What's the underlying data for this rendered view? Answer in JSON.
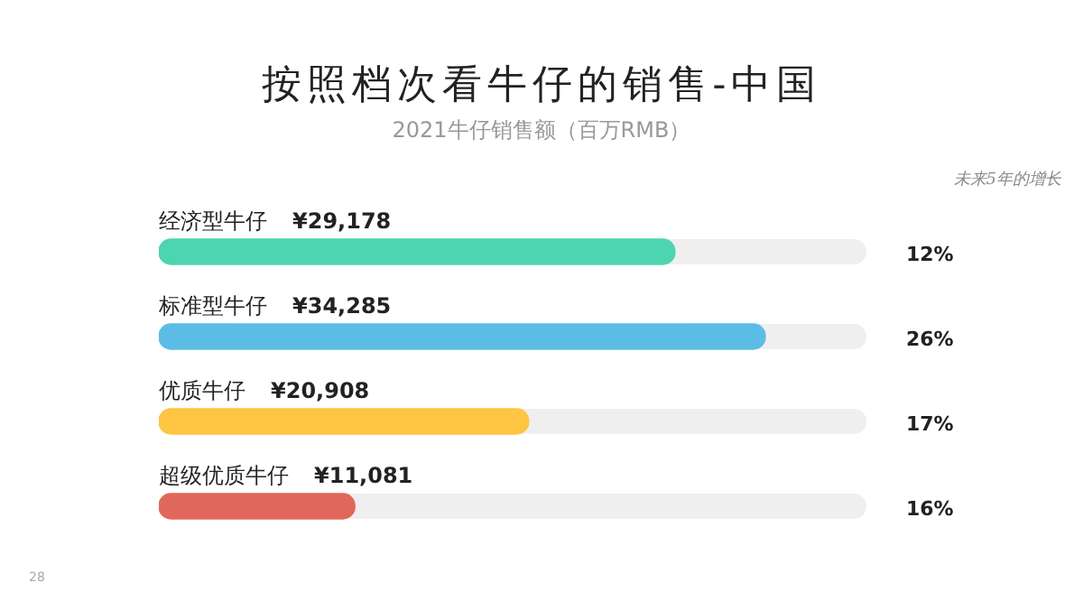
{
  "chart_data": {
    "type": "bar",
    "orientation": "horizontal",
    "title": "按照档次看牛仔的销售-中国",
    "subtitle": "2021牛仔销售额（百万RMB）",
    "categories": [
      "经济型牛仔",
      "标准型牛仔",
      "优质牛仔",
      "超级优质牛仔"
    ],
    "values": [
      29178,
      34285,
      20908,
      11081
    ],
    "colors": [
      "#4dd4b0",
      "#5bbde6",
      "#fec542",
      "#e0685a"
    ],
    "value_labels": [
      "¥29,178",
      "¥34,285",
      "¥20,908",
      "¥11,081"
    ],
    "legend": false,
    "annotations": [
      "未来5年的增长",
      "12%",
      "26%",
      "17%",
      "16%",
      "28"
    ]
  }
}
